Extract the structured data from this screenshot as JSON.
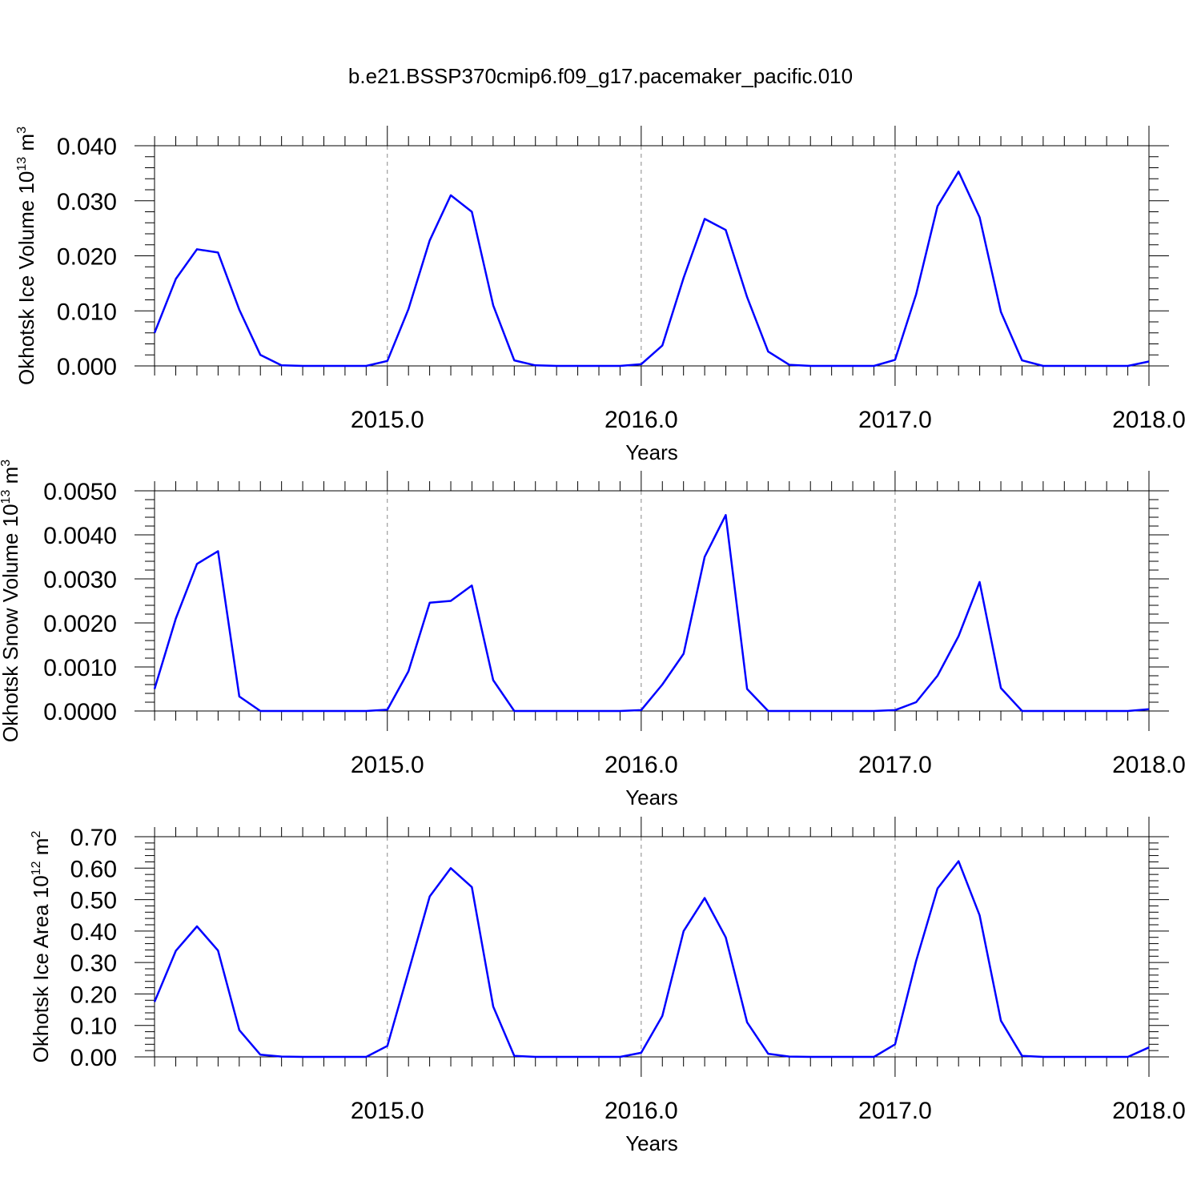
{
  "title": "b.e21.BSSP370cmip6.f09_g17.pacemaker_pacific.010",
  "line_color": "#0000ff",
  "chart_data": [
    {
      "type": "line",
      "title": "",
      "xlabel": "Years",
      "ylabel": "Okhotsk Ice Volume 10",
      "ylabel_sup": "13",
      "ylabel_unit": " m",
      "ylabel_unit_sup": "3",
      "xlim": [
        2014.083,
        2018.0
      ],
      "ylim": [
        0.0,
        0.04
      ],
      "xticks": [
        2015.0,
        2016.0,
        2017.0,
        2018.0
      ],
      "xtick_labels": [
        "2015.0",
        "2016.0",
        "2017.0",
        "2018.0"
      ],
      "yticks": [
        0.0,
        0.01,
        0.02,
        0.03,
        0.04
      ],
      "ytick_labels": [
        "0.000",
        "0.010",
        "0.020",
        "0.030",
        "0.040"
      ],
      "grid": "vertical dashed at year marks",
      "series": [
        {
          "x": [
            2014.083,
            2014.167,
            2014.25,
            2014.333,
            2014.417,
            2014.5,
            2014.583,
            2014.667,
            2014.75,
            2014.833,
            2014.917,
            2015.0,
            2015.083,
            2015.167,
            2015.25,
            2015.333,
            2015.417,
            2015.5,
            2015.583,
            2015.667,
            2015.75,
            2015.833,
            2015.917,
            2016.0,
            2016.083,
            2016.167,
            2016.25,
            2016.333,
            2016.417,
            2016.5,
            2016.583,
            2016.667,
            2016.75,
            2016.833,
            2016.917,
            2017.0,
            2017.083,
            2017.167,
            2017.25,
            2017.333,
            2017.417,
            2017.5,
            2017.583,
            2017.667,
            2017.75,
            2017.833,
            2017.917,
            2018.0
          ],
          "values": [
            0.006,
            0.0158,
            0.0212,
            0.0206,
            0.0102,
            0.002,
            0.0001,
            0.0,
            0.0,
            0.0,
            0.0,
            0.0009,
            0.0103,
            0.0228,
            0.031,
            0.028,
            0.011,
            0.001,
            0.0001,
            0.0,
            0.0,
            0.0,
            0.0,
            0.0003,
            0.0037,
            0.016,
            0.0267,
            0.0247,
            0.0125,
            0.0026,
            0.0002,
            0.0,
            0.0,
            0.0,
            0.0,
            0.0011,
            0.013,
            0.029,
            0.0353,
            0.027,
            0.0098,
            0.001,
            0.0,
            0.0,
            0.0,
            0.0,
            0.0,
            0.0008
          ]
        }
      ]
    },
    {
      "type": "line",
      "title": "",
      "xlabel": "Years",
      "ylabel": "Okhotsk Snow Volume 10",
      "ylabel_sup": "13",
      "ylabel_unit": " m",
      "ylabel_unit_sup": "3",
      "xlim": [
        2014.083,
        2018.0
      ],
      "ylim": [
        0.0,
        0.005
      ],
      "xticks": [
        2015.0,
        2016.0,
        2017.0,
        2018.0
      ],
      "xtick_labels": [
        "2015.0",
        "2016.0",
        "2017.0",
        "2018.0"
      ],
      "yticks": [
        0.0,
        0.001,
        0.002,
        0.003,
        0.004,
        0.005
      ],
      "ytick_labels": [
        "0.0000",
        "0.0010",
        "0.0020",
        "0.0030",
        "0.0040",
        "0.0050"
      ],
      "grid": "vertical dashed at year marks",
      "series": [
        {
          "x": [
            2014.083,
            2014.167,
            2014.25,
            2014.333,
            2014.417,
            2014.5,
            2014.583,
            2014.667,
            2014.75,
            2014.833,
            2014.917,
            2015.0,
            2015.083,
            2015.167,
            2015.25,
            2015.333,
            2015.417,
            2015.5,
            2015.583,
            2015.667,
            2015.75,
            2015.833,
            2015.917,
            2016.0,
            2016.083,
            2016.167,
            2016.25,
            2016.333,
            2016.417,
            2016.5,
            2016.583,
            2016.667,
            2016.75,
            2016.833,
            2016.917,
            2017.0,
            2017.083,
            2017.167,
            2017.25,
            2017.333,
            2017.417,
            2017.5,
            2017.583,
            2017.667,
            2017.75,
            2017.833,
            2017.917,
            2018.0
          ],
          "values": [
            0.0005,
            0.0021,
            0.00334,
            0.00363,
            0.00033,
            0.0,
            0.0,
            0.0,
            0.0,
            0.0,
            0.0,
            3e-05,
            0.0009,
            0.00246,
            0.0025,
            0.00285,
            0.0007,
            0.0,
            0.0,
            0.0,
            0.0,
            0.0,
            0.0,
            2e-05,
            0.0006,
            0.0013,
            0.0035,
            0.00445,
            0.0005,
            0.0,
            0.0,
            0.0,
            0.0,
            0.0,
            0.0,
            2e-05,
            0.0002,
            0.0008,
            0.0017,
            0.00293,
            0.00052,
            0.0,
            0.0,
            0.0,
            0.0,
            0.0,
            0.0,
            4e-05
          ]
        }
      ]
    },
    {
      "type": "line",
      "title": "",
      "xlabel": "Years",
      "ylabel": "Okhotsk Ice Area 10",
      "ylabel_sup": "12",
      "ylabel_unit": " m",
      "ylabel_unit_sup": "2",
      "xlim": [
        2014.083,
        2018.0
      ],
      "ylim": [
        0.0,
        0.7
      ],
      "xticks": [
        2015.0,
        2016.0,
        2017.0,
        2018.0
      ],
      "xtick_labels": [
        "2015.0",
        "2016.0",
        "2017.0",
        "2018.0"
      ],
      "yticks": [
        0.0,
        0.1,
        0.2,
        0.3,
        0.4,
        0.5,
        0.6,
        0.7
      ],
      "ytick_labels": [
        "0.00",
        "0.10",
        "0.20",
        "0.30",
        "0.40",
        "0.50",
        "0.60",
        "0.70"
      ],
      "grid": "vertical dashed at year marks",
      "series": [
        {
          "x": [
            2014.083,
            2014.167,
            2014.25,
            2014.333,
            2014.417,
            2014.5,
            2014.583,
            2014.667,
            2014.75,
            2014.833,
            2014.917,
            2015.0,
            2015.083,
            2015.167,
            2015.25,
            2015.333,
            2015.417,
            2015.5,
            2015.583,
            2015.667,
            2015.75,
            2015.833,
            2015.917,
            2016.0,
            2016.083,
            2016.167,
            2016.25,
            2016.333,
            2016.417,
            2016.5,
            2016.583,
            2016.667,
            2016.75,
            2016.833,
            2016.917,
            2017.0,
            2017.083,
            2017.167,
            2017.25,
            2017.333,
            2017.417,
            2017.5,
            2017.583,
            2017.667,
            2017.75,
            2017.833,
            2017.917,
            2018.0
          ],
          "values": [
            0.175,
            0.337,
            0.415,
            0.338,
            0.085,
            0.007,
            0.001,
            0.0,
            0.0,
            0.0,
            0.0,
            0.035,
            0.27,
            0.51,
            0.6,
            0.54,
            0.16,
            0.003,
            0.0,
            0.0,
            0.0,
            0.0,
            0.0,
            0.013,
            0.13,
            0.4,
            0.505,
            0.38,
            0.11,
            0.01,
            0.001,
            0.0,
            0.0,
            0.0,
            0.0,
            0.04,
            0.305,
            0.535,
            0.622,
            0.45,
            0.115,
            0.003,
            0.0,
            0.0,
            0.0,
            0.0,
            0.0,
            0.03
          ]
        }
      ]
    }
  ]
}
